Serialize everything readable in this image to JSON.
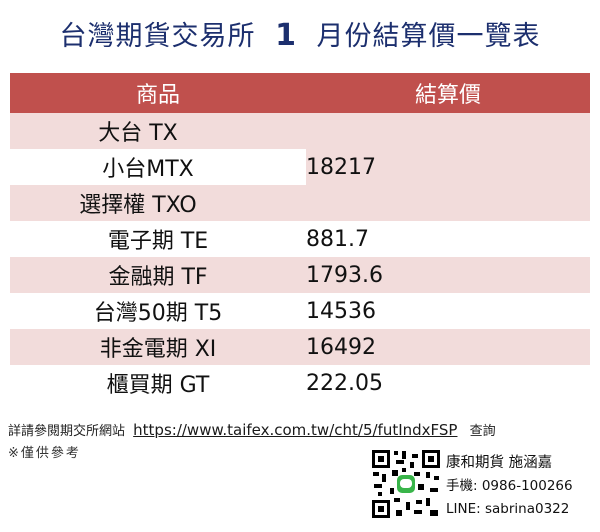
{
  "header": {
    "title_prefix": "台灣期貨交易所",
    "title_month": "1",
    "title_suffix": "月份結算價一覽表"
  },
  "table": {
    "col_product": "商品",
    "col_price": "結算價",
    "group": {
      "products": [
        "大台 TX",
        "小台MTX",
        "選擇權 TXO"
      ],
      "price": "18217"
    },
    "rows": [
      {
        "product": "電子期  TE",
        "price": "881.7"
      },
      {
        "product": "金融期  TF",
        "price": "1793.6"
      },
      {
        "product": "台灣50期 T5",
        "price": "14536"
      },
      {
        "product": "非金電期 XI",
        "price": "16492"
      },
      {
        "product": "櫃買期  GT",
        "price": "222.05"
      }
    ]
  },
  "footer": {
    "prefix": "詳請參閱期交所網站",
    "link": "https://www.taifex.com.tw/cht/5/futIndxFSP",
    "suffix": "查詢",
    "note": "※僅供參考"
  },
  "contact": {
    "name": "康和期貨 施涵嘉",
    "phone": "手機: 0986-100266",
    "line": "LINE: sabrina0322"
  },
  "colors": {
    "header_bg": "#c0504d",
    "band": "#f2dcdb",
    "title": "#1c2f6e"
  },
  "icons": [
    "qr-code-icon"
  ]
}
